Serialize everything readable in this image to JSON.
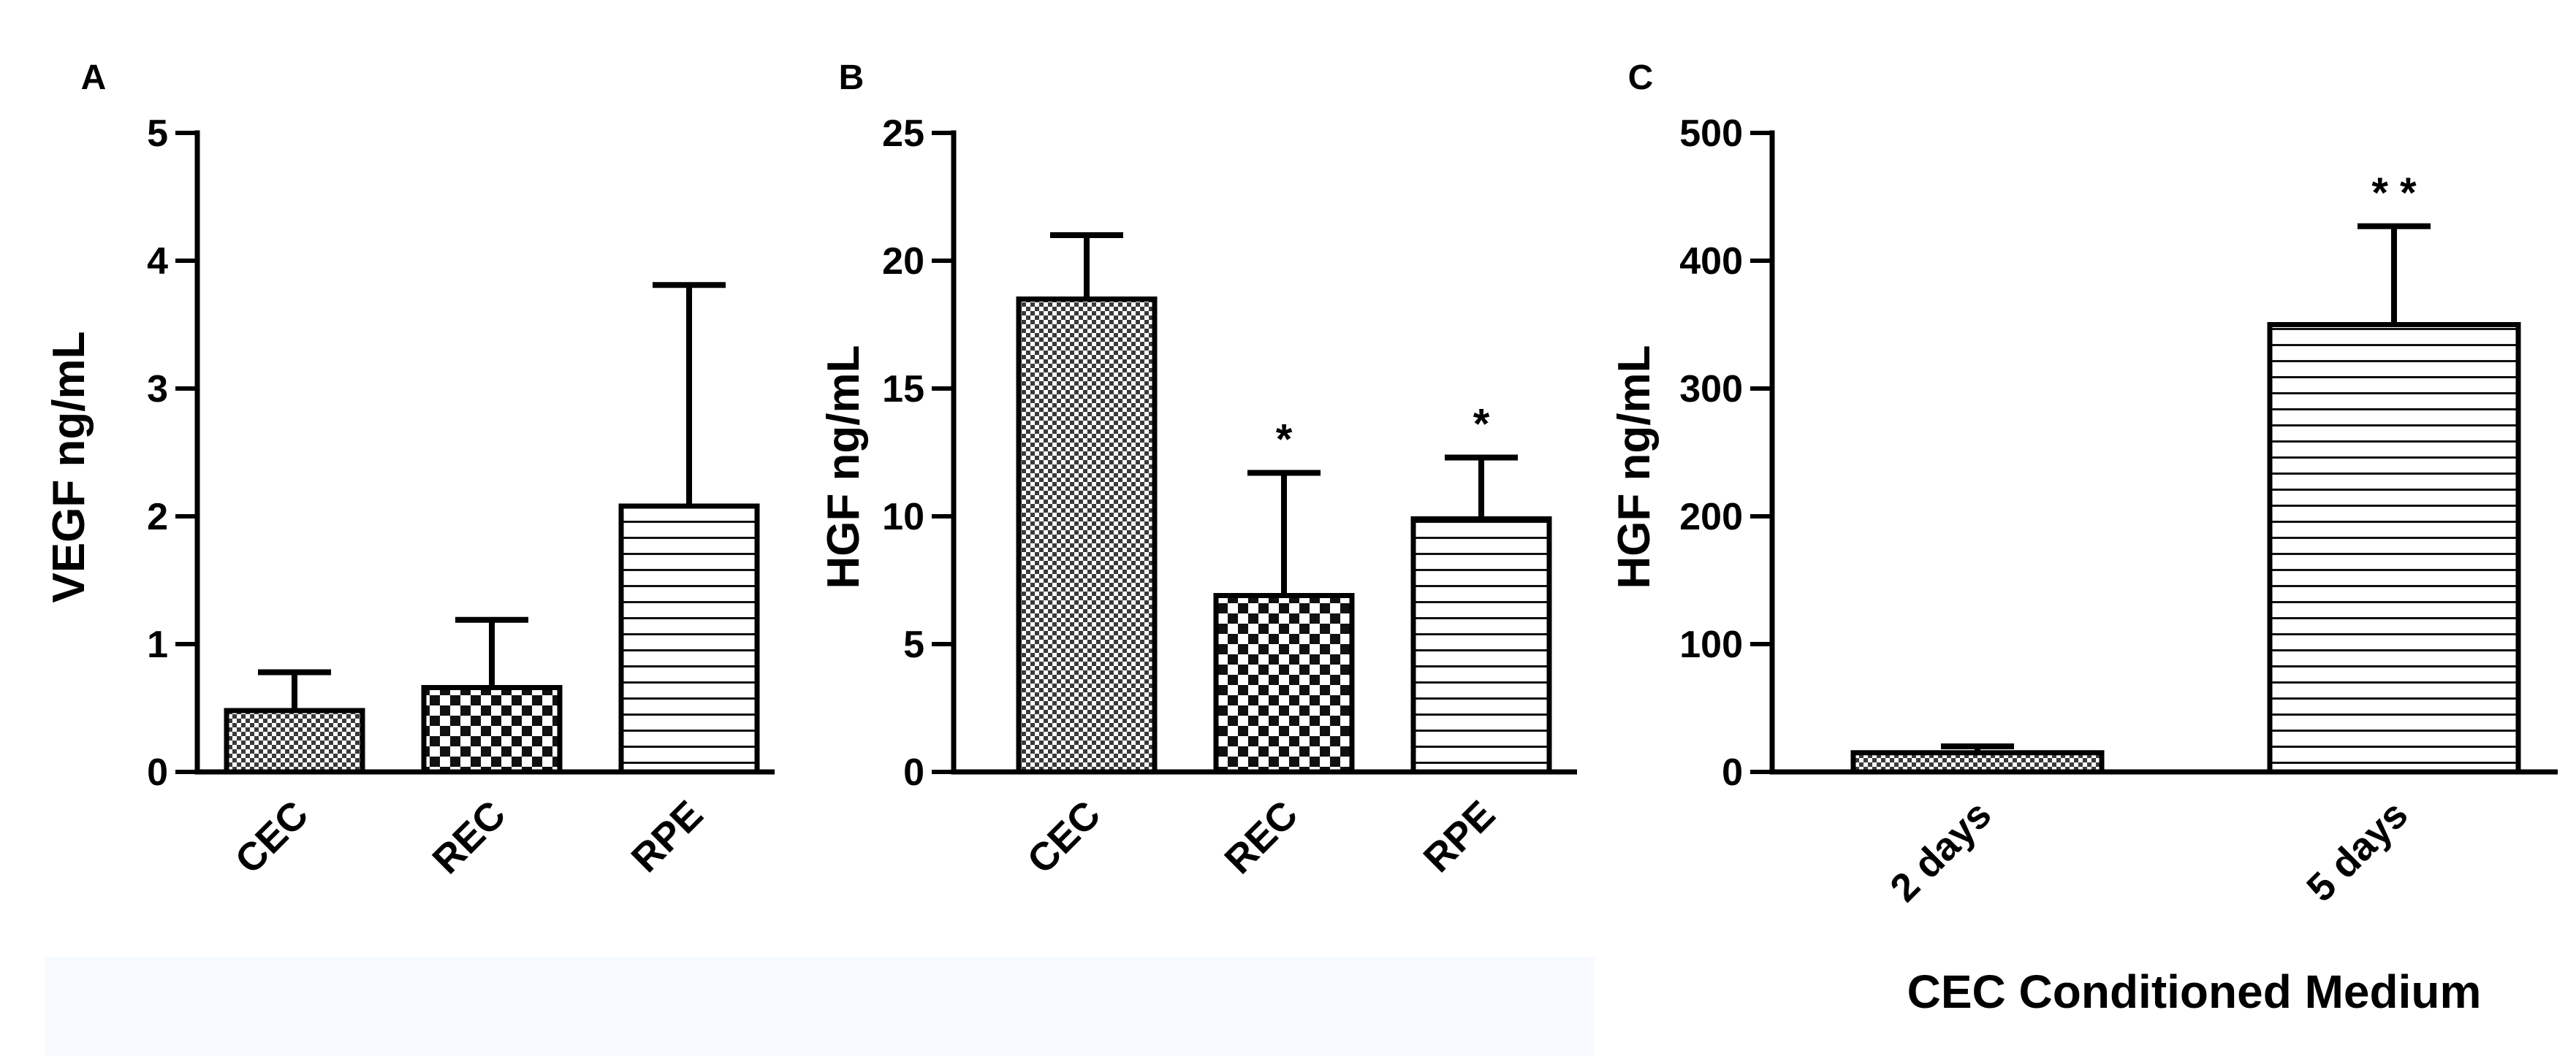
{
  "chart_data": [
    {
      "panel_label": "A",
      "type": "bar",
      "categories": [
        "CEC",
        "REC",
        "RPE"
      ],
      "values": [
        0.48,
        0.66,
        2.08
      ],
      "errors": [
        0.3,
        0.53,
        1.73
      ],
      "patterns": [
        "fine-check",
        "checker",
        "hstripe"
      ],
      "significance": [
        "",
        "",
        ""
      ],
      "ylabel": "VEGF ng/mL",
      "xlabel": "",
      "ylim": [
        0,
        5
      ],
      "yticks": [
        0,
        1,
        2,
        3,
        4,
        5
      ],
      "grid": false
    },
    {
      "panel_label": "B",
      "type": "bar",
      "categories": [
        "CEC",
        "REC",
        "RPE"
      ],
      "values": [
        18.5,
        6.9,
        9.9
      ],
      "errors": [
        2.5,
        4.8,
        2.4
      ],
      "patterns": [
        "fine-check",
        "checker",
        "hstripe"
      ],
      "significance": [
        "",
        "*",
        "*"
      ],
      "ylabel": "HGF ng/mL",
      "xlabel": "",
      "ylim": [
        0,
        25
      ],
      "yticks": [
        0,
        5,
        10,
        15,
        20,
        25
      ],
      "grid": false
    },
    {
      "panel_label": "C",
      "type": "bar",
      "categories": [
        "2 days",
        "5 days"
      ],
      "values": [
        15,
        350
      ],
      "errors": [
        5,
        77
      ],
      "patterns": [
        "fine-check",
        "hstripe"
      ],
      "significance": [
        "",
        "* *"
      ],
      "ylabel": "HGF ng/mL",
      "xlabel": "CEC Conditioned Medium",
      "ylim": [
        0,
        500
      ],
      "yticks": [
        0,
        100,
        200,
        300,
        400,
        500
      ],
      "grid": false
    }
  ]
}
